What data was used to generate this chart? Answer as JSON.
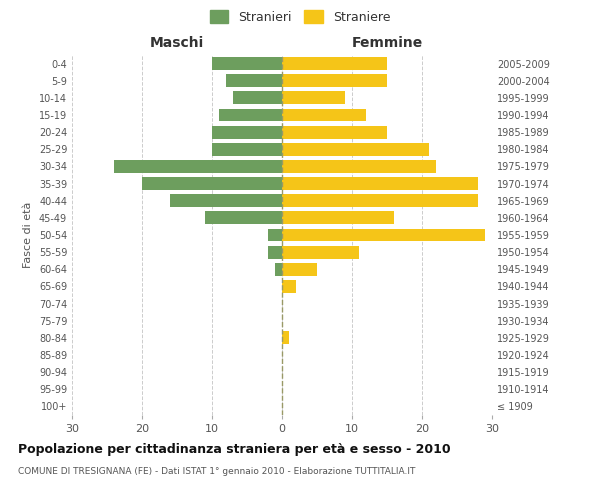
{
  "age_groups": [
    "100+",
    "95-99",
    "90-94",
    "85-89",
    "80-84",
    "75-79",
    "70-74",
    "65-69",
    "60-64",
    "55-59",
    "50-54",
    "45-49",
    "40-44",
    "35-39",
    "30-34",
    "25-29",
    "20-24",
    "15-19",
    "10-14",
    "5-9",
    "0-4"
  ],
  "birth_years": [
    "≤ 1909",
    "1910-1914",
    "1915-1919",
    "1920-1924",
    "1925-1929",
    "1930-1934",
    "1935-1939",
    "1940-1944",
    "1945-1949",
    "1950-1954",
    "1955-1959",
    "1960-1964",
    "1965-1969",
    "1970-1974",
    "1975-1979",
    "1980-1984",
    "1985-1989",
    "1990-1994",
    "1995-1999",
    "2000-2004",
    "2005-2009"
  ],
  "males": [
    0,
    0,
    0,
    0,
    0,
    0,
    0,
    0,
    1,
    2,
    2,
    11,
    16,
    20,
    24,
    10,
    10,
    9,
    7,
    8,
    10
  ],
  "females": [
    0,
    0,
    0,
    0,
    1,
    0,
    0,
    2,
    5,
    11,
    29,
    16,
    28,
    28,
    22,
    21,
    15,
    12,
    9,
    15,
    15
  ],
  "male_color": "#6d9e5e",
  "female_color": "#f5c518",
  "background_color": "#ffffff",
  "grid_color": "#cccccc",
  "title": "Popolazione per cittadinanza straniera per età e sesso - 2010",
  "subtitle": "COMUNE DI TRESIGNANA (FE) - Dati ISTAT 1° gennaio 2010 - Elaborazione TUTTITALIA.IT",
  "ylabel_left": "Fasce di età",
  "xlabel_left": "Maschi",
  "xlabel_top_right": "Femmine",
  "legend_males": "Stranieri",
  "legend_females": "Straniere",
  "xlim": 30,
  "bar_height": 0.75
}
